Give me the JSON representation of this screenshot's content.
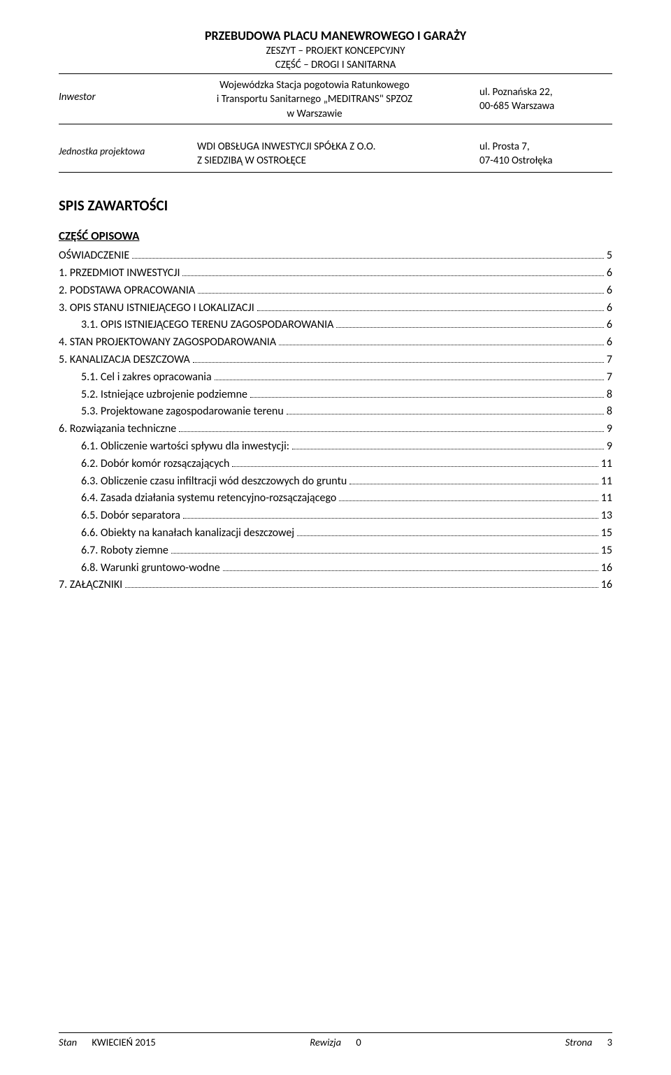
{
  "header": {
    "main_title": "PRZEBUDOWA PLACU MANEWROWEGO I GARAŻY",
    "sub_title1": "ZESZYT – PROJEKT KONCEPCYJNY",
    "sub_title2": "CZĘŚĆ – DROGI I SANITARNA"
  },
  "investor": {
    "label": "Inwestor",
    "name_line1": "Wojewódzka Stacja pogotowia Ratunkowego",
    "name_line2": "i Transportu Sanitarnego „MEDITRANS\" SPZOZ",
    "name_line3": "w Warszawie",
    "addr_line1": "ul. Poznańska 22,",
    "addr_line2": "00-685 Warszawa"
  },
  "unit": {
    "label": "Jednostka projektowa",
    "name_line1": "WDI  OBSŁUGA  INWESTYCJI  SPÓŁKA Z O.O.",
    "name_line2": "Z SIEDZIBĄ W OSTROŁĘCE",
    "addr_line1": "ul. Prosta 7,",
    "addr_line2": "07-410 Ostrołęka"
  },
  "section_title": "SPIS ZAWARTOŚCI",
  "sub_section": "CZĘŚĆ OPISOWA",
  "toc": [
    {
      "indent": 0,
      "num": "",
      "text": "OŚWIADCZENIE",
      "page": "5"
    },
    {
      "indent": 0,
      "num": "1.",
      "text": "PRZEDMIOT INWESTYCJI",
      "page": "6"
    },
    {
      "indent": 0,
      "num": "2.",
      "text": "PODSTAWA OPRACOWANIA",
      "page": "6"
    },
    {
      "indent": 0,
      "num": "3.",
      "text": "OPIS STANU ISTNIEJĄCEGO I LOKALIZACJI",
      "page": "6"
    },
    {
      "indent": 1,
      "num": "3.1.",
      "text": "OPIS ISTNIEJĄCEGO TERENU ZAGOSPODAROWANIA",
      "page": "6"
    },
    {
      "indent": 0,
      "num": "4.",
      "text": "STAN PROJEKTOWANY ZAGOSPODAROWANIA",
      "page": "6"
    },
    {
      "indent": 0,
      "num": "5.",
      "text": "KANALIZACJA DESZCZOWA",
      "page": "7"
    },
    {
      "indent": 1,
      "num": "5.1.",
      "text": "Cel i zakres opracowania",
      "page": "7"
    },
    {
      "indent": 1,
      "num": "5.2.",
      "text": "Istniejące uzbrojenie podziemne",
      "page": "8"
    },
    {
      "indent": 1,
      "num": "5.3.",
      "text": "Projektowane zagospodarowanie terenu",
      "page": "8"
    },
    {
      "indent": 0,
      "num": "6.",
      "text": "Rozwiązania techniczne",
      "page": "9"
    },
    {
      "indent": 1,
      "num": "6.1.",
      "text": "Obliczenie wartości spływu dla inwestycji:",
      "page": "9"
    },
    {
      "indent": 1,
      "num": "6.2.",
      "text": "Dobór komór rozsączających",
      "page": "11"
    },
    {
      "indent": 1,
      "num": "6.3.",
      "text": "Obliczenie czasu infiltracji wód deszczowych do gruntu",
      "page": "11"
    },
    {
      "indent": 1,
      "num": "6.4.",
      "text": "Zasada działania systemu retencyjno-rozsączającego",
      "page": "11"
    },
    {
      "indent": 1,
      "num": "6.5.",
      "text": "Dobór separatora",
      "page": "13"
    },
    {
      "indent": 1,
      "num": "6.6.",
      "text": "Obiekty na kanałach kanalizacji deszczowej",
      "page": "15"
    },
    {
      "indent": 1,
      "num": "6.7.",
      "text": "Roboty ziemne",
      "page": "15"
    },
    {
      "indent": 1,
      "num": "6.8.",
      "text": "Warunki gruntowo-wodne",
      "page": "16"
    },
    {
      "indent": 0,
      "num": "7.",
      "text": "ZAŁĄCZNIKI",
      "page": "16"
    }
  ],
  "footer": {
    "left_label": "Stan",
    "left_value": "KWIECIEŃ 2015",
    "mid_label": "Rewizja",
    "mid_value": "0",
    "right_label": "Strona",
    "right_value": "3"
  }
}
